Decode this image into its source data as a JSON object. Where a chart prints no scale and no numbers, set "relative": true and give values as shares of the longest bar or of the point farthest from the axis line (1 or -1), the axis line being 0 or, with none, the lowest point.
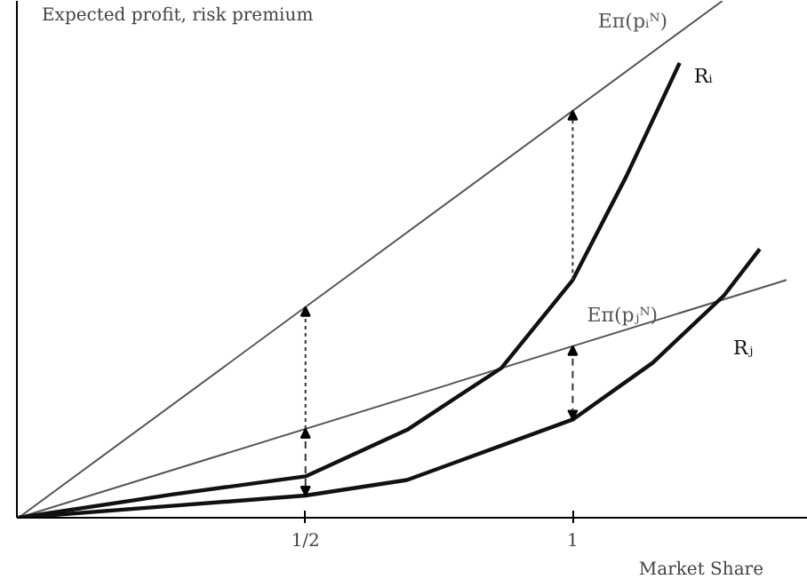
{
  "chart_data": {
    "type": "line",
    "relative": true,
    "xlabel": "Market Share",
    "ylabel": "Expected profit, risk premium",
    "xlim": [
      -0.04,
      1.44
    ],
    "xticks": [
      {
        "value": 0.5,
        "label": "1/2"
      },
      1
    ],
    "grid": false,
    "marker": "none",
    "line_style": "solid",
    "series": [
      {
        "name": "Eπ(pᵢᴺ)",
        "color": "#555555",
        "x": [
          -0.037,
          1.28
        ],
        "values": [
          0,
          1
        ]
      },
      {
        "name": "Eπ(pⱼᴺ)",
        "color": "#555555",
        "x": [
          -0.037,
          1.4
        ],
        "values": [
          0,
          0.46
        ]
      },
      {
        "name": "Rᵢ",
        "color": "#111111",
        "x": [
          -0.037,
          0.25,
          0.5,
          0.69,
          0.867,
          1,
          1.1,
          1.2
        ],
        "values": [
          0,
          0.045,
          0.08,
          0.17,
          0.29,
          0.46,
          0.66,
          0.88
        ]
      },
      {
        "name": "Rⱼ",
        "color": "#111111",
        "x": [
          -0.037,
          0.25,
          0.5,
          0.69,
          1,
          1.15,
          1.283,
          1.35
        ],
        "values": [
          0,
          0.023,
          0.043,
          0.073,
          0.19,
          0.3,
          0.43,
          0.52
        ]
      }
    ]
  }
}
